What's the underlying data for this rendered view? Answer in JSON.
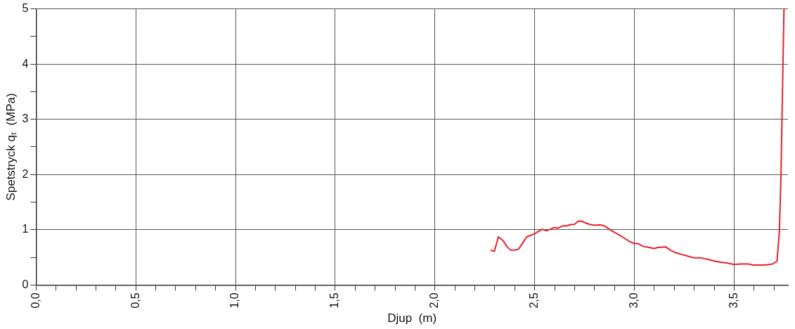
{
  "chart_data": {
    "type": "line",
    "xlabel": "Djup  (m)",
    "ylabel": "Spetstryck qₜ  (MPa)",
    "x": [
      2.278,
      2.298,
      2.318,
      2.34,
      2.36,
      2.38,
      2.4,
      2.42,
      2.44,
      2.46,
      2.5,
      2.537,
      2.56,
      2.597,
      2.618,
      2.64,
      2.66,
      2.677,
      2.7,
      2.72,
      2.737,
      2.773,
      2.8,
      2.827,
      2.85,
      2.887,
      2.935,
      2.97,
      2.997,
      3.017,
      3.043,
      3.073,
      3.1,
      3.117,
      3.157,
      3.18,
      3.21,
      3.24,
      3.26,
      3.3,
      3.334,
      3.373,
      3.403,
      3.439,
      3.463,
      3.499,
      3.535,
      3.571,
      3.595,
      3.655,
      3.693,
      3.715,
      3.727,
      3.735,
      3.75
    ],
    "series": [
      {
        "color": "#e8202a",
        "values": [
          0.63,
          0.61,
          0.87,
          0.81,
          0.7,
          0.63,
          0.63,
          0.65,
          0.76,
          0.87,
          0.93,
          1.01,
          0.98,
          1.04,
          1.03,
          1.07,
          1.07,
          1.09,
          1.1,
          1.16,
          1.15,
          1.1,
          1.08,
          1.09,
          1.07,
          0.98,
          0.88,
          0.8,
          0.75,
          0.75,
          0.7,
          0.68,
          0.66,
          0.68,
          0.69,
          0.63,
          0.58,
          0.55,
          0.53,
          0.49,
          0.49,
          0.46,
          0.43,
          0.41,
          0.4,
          0.37,
          0.38,
          0.38,
          0.36,
          0.36,
          0.38,
          0.43,
          0.97,
          2.0,
          5.0
        ]
      }
    ],
    "xlim": [
      0,
      3.77
    ],
    "xticks": [
      {
        "value": 0,
        "label": "0,0"
      },
      {
        "value": 0.1,
        "label": null
      },
      {
        "value": 0.2,
        "label": null
      },
      {
        "value": 0.3,
        "label": null
      },
      {
        "value": 0.4,
        "label": null
      },
      {
        "value": 0.5,
        "label": "0,5"
      },
      {
        "value": 0.6,
        "label": null
      },
      {
        "value": 0.7,
        "label": null
      },
      {
        "value": 0.8,
        "label": null
      },
      {
        "value": 0.9,
        "label": null
      },
      {
        "value": 1,
        "label": "1,0"
      },
      {
        "value": 1.1,
        "label": null
      },
      {
        "value": 1.2,
        "label": null
      },
      {
        "value": 1.3,
        "label": null
      },
      {
        "value": 1.4,
        "label": null
      },
      {
        "value": 1.5,
        "label": "1,5"
      },
      {
        "value": 1.6,
        "label": null
      },
      {
        "value": 1.7,
        "label": null
      },
      {
        "value": 1.8,
        "label": null
      },
      {
        "value": 1.9,
        "label": null
      },
      {
        "value": 2,
        "label": "2,0"
      },
      {
        "value": 2.1,
        "label": null
      },
      {
        "value": 2.2,
        "label": null
      },
      {
        "value": 2.3,
        "label": null
      },
      {
        "value": 2.4,
        "label": null
      },
      {
        "value": 2.5,
        "label": "2,5"
      },
      {
        "value": 2.6,
        "label": null
      },
      {
        "value": 2.7,
        "label": null
      },
      {
        "value": 2.8,
        "label": null
      },
      {
        "value": 2.9,
        "label": null
      },
      {
        "value": 3,
        "label": "3,0"
      },
      {
        "value": 3.1,
        "label": null
      },
      {
        "value": 3.2,
        "label": null
      },
      {
        "value": 3.3,
        "label": null
      },
      {
        "value": 3.4,
        "label": null
      },
      {
        "value": 3.5,
        "label": "3,5"
      },
      {
        "value": 3.6,
        "label": null
      },
      {
        "value": 3.7,
        "label": null
      }
    ],
    "ylim": [
      0,
      5
    ],
    "yticks": [
      0,
      {
        "value": 0.5,
        "label": null
      },
      1,
      {
        "value": 1.5,
        "label": null
      },
      2,
      {
        "value": 2.5,
        "label": null
      },
      3,
      {
        "value": 3.5,
        "label": null
      },
      4,
      {
        "value": 4.5,
        "label": null
      },
      5
    ],
    "grid": true,
    "marker": "none",
    "line_style": "solid"
  }
}
